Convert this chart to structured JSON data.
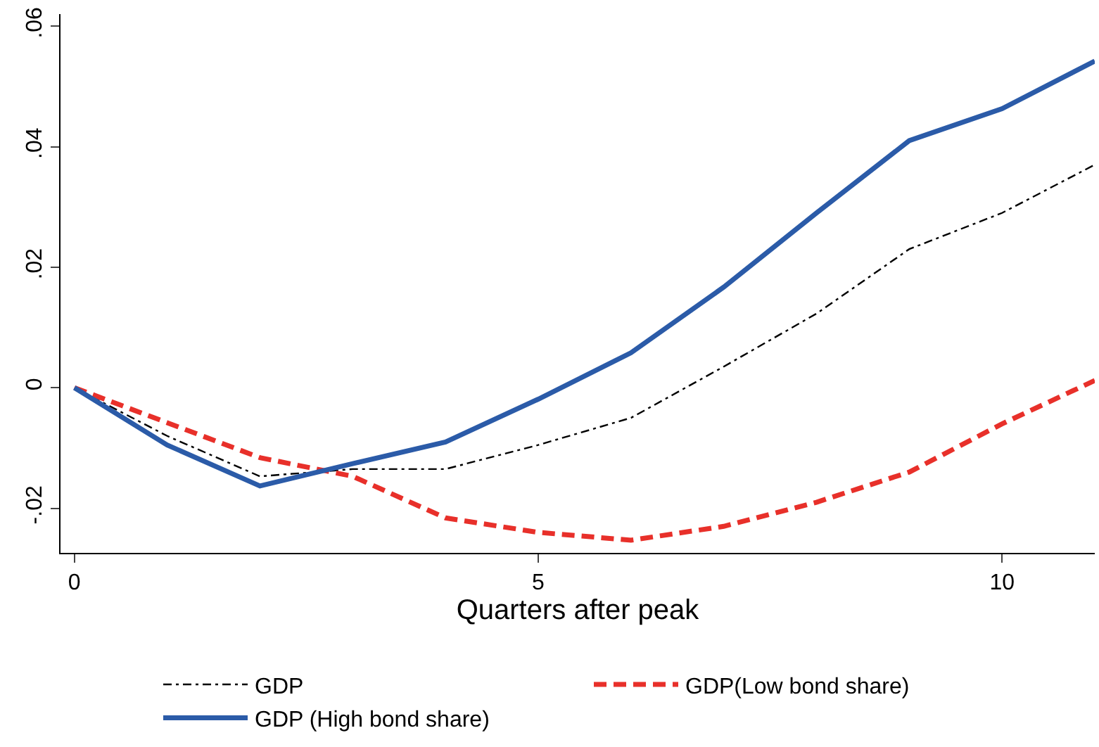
{
  "chart_data": {
    "type": "line",
    "xlabel": "Quarters after peak",
    "x": [
      0,
      1,
      2,
      3,
      4,
      5,
      6,
      7,
      8,
      9,
      10,
      11
    ],
    "series": [
      {
        "name": "GDP",
        "color": "#000000",
        "line_style": "dashdot",
        "values": [
          0,
          -0.008,
          -0.0147,
          -0.0135,
          -0.0135,
          -0.0095,
          -0.005,
          0.0035,
          0.0123,
          0.023,
          0.029,
          0.037
        ]
      },
      {
        "name": "GDP(Low bond share)",
        "color": "#e8302a",
        "line_style": "dashed",
        "values": [
          0,
          -0.0058,
          -0.0116,
          -0.0147,
          -0.0216,
          -0.024,
          -0.0253,
          -0.023,
          -0.019,
          -0.014,
          -0.006,
          0.0012
        ]
      },
      {
        "name": "GDP (High bond share)",
        "color": "#2b5ba8",
        "line_style": "solid",
        "values": [
          0,
          -0.0095,
          -0.0163,
          -0.0126,
          -0.009,
          -0.0019,
          0.0058,
          0.0167,
          0.029,
          0.041,
          0.0463,
          0.0542
        ]
      }
    ],
    "xlim": [
      -0.15,
      11
    ],
    "xticks": [
      0,
      5,
      10
    ],
    "ylim": [
      -0.0274,
      0.062
    ],
    "yticks": [
      {
        "value": -0.02,
        "label": "-.02"
      },
      0,
      {
        "value": 0.02,
        "label": ".02"
      },
      {
        "value": 0.04,
        "label": ".04"
      },
      {
        "value": 0.06,
        "label": ".06"
      }
    ],
    "legend": "bottom",
    "marker": "none"
  }
}
